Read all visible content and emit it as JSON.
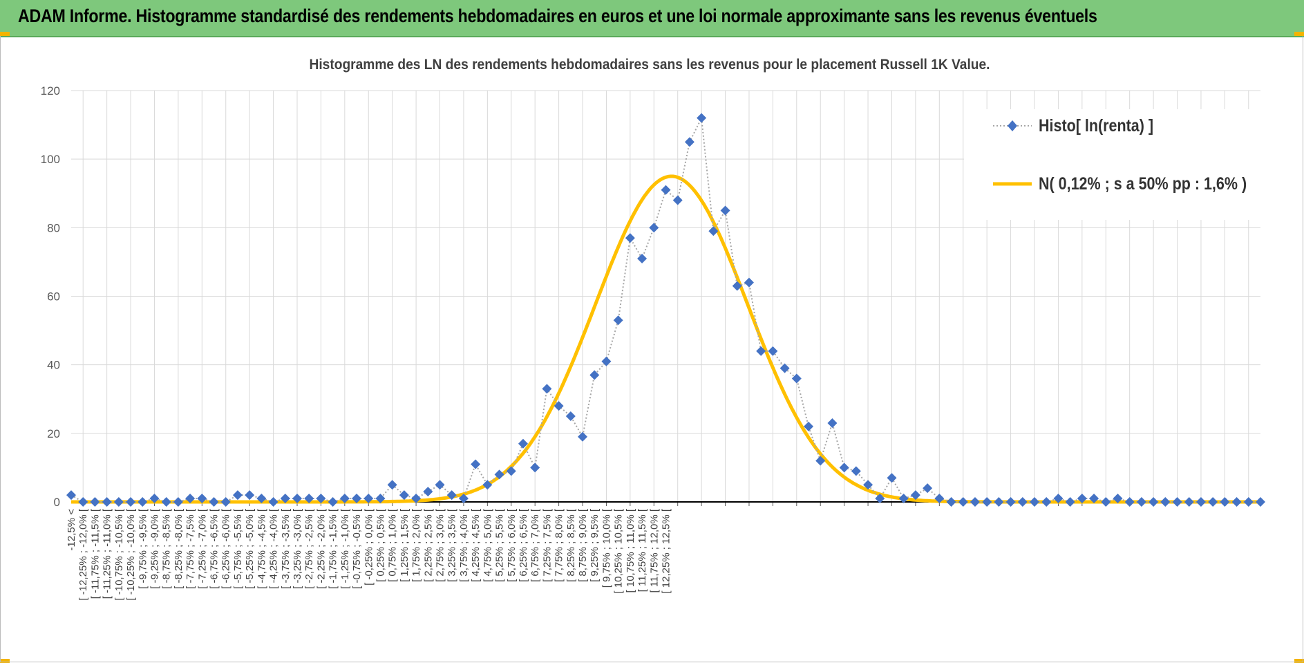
{
  "banner": {
    "title": "ADAM Informe. Histogramme standardisé des rendements hebdomadaires en euros et une loi normale approximante sans les revenus éventuels",
    "color": "#7ec87c"
  },
  "chart_data": {
    "type": "line",
    "title": "Histogramme  des LN des rendements hebdomadaires sans les revenus pour le placement Russell 1K Value.",
    "xlabel": "",
    "ylabel": "",
    "ylim": [
      0,
      120
    ],
    "yticks": [
      0,
      20,
      40,
      60,
      80,
      100,
      120
    ],
    "grid": true,
    "legend_position": "top-right",
    "categories": [
      "-12,5% <",
      "[ -12,25% ; -12,0% [",
      "[ -11,75% ; -11,5% [",
      "[ -11,25% ; -11,0% [",
      "[ -10,75% ; -10,5% [",
      "[ -10,25% ; -10,0% [",
      "[ -9,75% ; -9,5% [",
      "[ -9,25% ; -9,0% [",
      "[ -8,75% ; -8,5% [",
      "[ -8,25% ; -8,0% [",
      "[ -7,75% ; -7,5% [",
      "[ -7,25% ; -7,0% [",
      "[ -6,75% ; -6,5% [",
      "[ -6,25% ; -6,0% [",
      "[ -5,75% ; -5,5% [",
      "[ -5,25% ; -5,0% [",
      "[ -4,75% ; -4,5% [",
      "[ -4,25% ; -4,0% [",
      "[ -3,75% ; -3,5% [",
      "[ -3,25% ; -3,0% [",
      "[ -2,75% ; -2,5% [",
      "[ -2,25% ; -2,0% [",
      "[ -1,75% ; -1,5% [",
      "[ -1,25% ; -1,0% [",
      "[ -0,75% ; -0,5% [",
      "[ -0,25% ; 0,0% [",
      "[ 0,25% ; 0,5% [",
      "[ 0,75% ; 1,0% [",
      "[ 1,25% ; 1,5% [",
      "[ 1,75% ; 2,0% [",
      "[ 2,25% ; 2,5% [",
      "[ 2,75% ; 3,0% [",
      "[ 3,25% ; 3,5% [",
      "[ 3,75% ; 4,0% [",
      "[ 4,25% ; 4,5% [",
      "[ 4,75% ; 5,0% [",
      "[ 5,25% ; 5,5% [",
      "[ 5,75% ; 6,0% [",
      "[ 6,25% ; 6,5% [",
      "[ 6,75% ; 7,0% [",
      "[ 7,25% ; 7,5% [",
      "[ 7,75% ; 8,0% [",
      "[ 8,25% ; 8,5% [",
      "[ 8,75% ; 9,0% [",
      "[ 9,25% ; 9,5% [",
      "[ 9,75% ; 10,0% [",
      "[ 10,25% ; 10,5% [",
      "[ 10,75% ; 11,0% [",
      "[ 11,25% ; 11,5% [",
      "[ 11,75% ; 12,0% [",
      "[ 12,25% ; 12,5% ["
    ],
    "x": [
      -12.5,
      -12.25,
      -12.0,
      -11.75,
      -11.5,
      -11.25,
      -11.0,
      -10.75,
      -10.5,
      -10.25,
      -10.0,
      -9.75,
      -9.5,
      -9.25,
      -9.0,
      -8.75,
      -8.5,
      -8.25,
      -8.0,
      -7.75,
      -7.5,
      -7.25,
      -7.0,
      -6.75,
      -6.5,
      -6.25,
      -6.0,
      -5.75,
      -5.5,
      -5.25,
      -5.0,
      -4.75,
      -4.5,
      -4.25,
      -4.0,
      -3.75,
      -3.5,
      -3.25,
      -3.0,
      -2.75,
      -2.5,
      -2.25,
      -2.0,
      -1.75,
      -1.5,
      -1.25,
      -1.0,
      -0.75,
      -0.5,
      -0.25,
      0.0,
      0.25,
      0.5,
      0.75,
      1.0,
      1.25,
      1.5,
      1.75,
      2.0,
      2.25,
      2.5,
      2.75,
      3.0,
      3.25,
      3.5,
      3.75,
      4.0,
      4.25,
      4.5,
      4.75,
      5.0,
      5.25,
      5.5,
      5.75,
      6.0,
      6.25,
      6.5,
      6.75,
      7.0,
      7.25,
      7.5,
      7.75,
      8.0,
      8.25,
      8.5,
      8.75,
      9.0,
      9.25,
      9.5,
      9.75,
      10.0,
      10.25,
      10.5,
      10.75,
      11.0,
      11.25,
      11.5,
      11.75,
      12.0,
      12.25,
      12.5
    ],
    "series": [
      {
        "name": "Histo[ ln(renta) ]",
        "color": "#4472c4",
        "style": "dotted-line-diamond-markers",
        "values": [
          2,
          0,
          0,
          0,
          0,
          0,
          0,
          1,
          0,
          0,
          1,
          1,
          0,
          0,
          2,
          2,
          1,
          0,
          1,
          1,
          1,
          1,
          0,
          1,
          1,
          1,
          1,
          5,
          2,
          1,
          3,
          5,
          2,
          1,
          11,
          5,
          8,
          9,
          17,
          10,
          33,
          28,
          25,
          19,
          37,
          41,
          53,
          77,
          71,
          80,
          91,
          88,
          105,
          112,
          79,
          85,
          63,
          64,
          44,
          44,
          39,
          36,
          22,
          12,
          23,
          10,
          9,
          5,
          1,
          7,
          1,
          2,
          4,
          1,
          0,
          0,
          0,
          0,
          0,
          0,
          0,
          0,
          0,
          1,
          0,
          1,
          1,
          0,
          1,
          0,
          0,
          0,
          0,
          0,
          0,
          0,
          0,
          0,
          0,
          0,
          0
        ]
      },
      {
        "name": "N( 0,12% ; s a 50% pp : 1,6% )",
        "color": "#ffc000",
        "style": "smooth-line",
        "mean": 0.12,
        "peak": 95
      }
    ]
  }
}
